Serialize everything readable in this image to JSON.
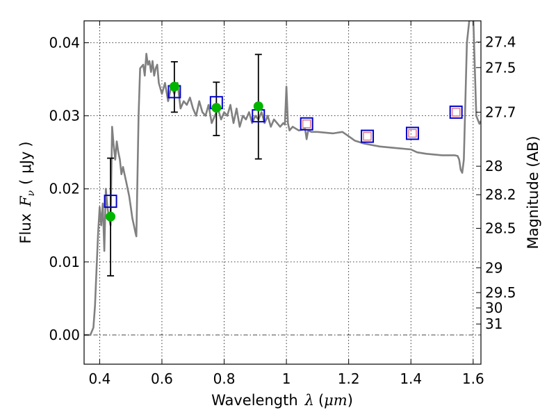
{
  "chart_data": {
    "type": "scatter",
    "xlabel": {
      "text": "Wavelength",
      "symbol": "λ",
      "open": "(",
      "unit": "μm",
      "close": ")"
    },
    "ylabel": {
      "text": "Flux",
      "symbol": "F",
      "sub": "ν",
      "open": "(",
      "unit": "μJy",
      "close": ")"
    },
    "y2label": "Magnitude (AB)",
    "xlim": [
      0.35,
      1.625
    ],
    "ylim": [
      -0.004,
      0.043
    ],
    "x_ticks": [
      0.4,
      0.6,
      0.8,
      1.0,
      1.2,
      1.4,
      1.6
    ],
    "x_tick_labels": [
      "0.4",
      "0.6",
      "0.8",
      "1",
      "1.2",
      "1.4",
      "1.6"
    ],
    "y_ticks": [
      0.0,
      0.01,
      0.02,
      0.03,
      0.04
    ],
    "y_tick_labels": [
      "0.00",
      "0.01",
      "0.02",
      "0.03",
      "0.04"
    ],
    "magnitude_ticks": [
      {
        "label": "27.4",
        "flux": 0.0401
      },
      {
        "label": "27.5",
        "flux": 0.0366
      },
      {
        "label": "27.7",
        "flux": 0.0305
      },
      {
        "label": "28",
        "flux": 0.0231
      },
      {
        "label": "28.2",
        "flux": 0.0192
      },
      {
        "label": "28.5",
        "flux": 0.0146
      },
      {
        "label": "29",
        "flux": 0.0092
      },
      {
        "label": "29.5",
        "flux": 0.0058
      },
      {
        "label": "30",
        "flux": 0.0037
      },
      {
        "label": "31",
        "flux": 0.0015
      }
    ],
    "grid": true,
    "colors": {
      "sed": "#808080",
      "model_box": "#0000cc",
      "observed": "#00b400",
      "ir_box": "#e07a8a",
      "errorbar": "#000000",
      "zero_line": "#333333"
    },
    "series": [
      {
        "role": "sed-template",
        "x": [
          0.35,
          0.36,
          0.37,
          0.38,
          0.385,
          0.39,
          0.395,
          0.4,
          0.405,
          0.41,
          0.415,
          0.42,
          0.425,
          0.43,
          0.435,
          0.44,
          0.445,
          0.45,
          0.455,
          0.46,
          0.465,
          0.47,
          0.475,
          0.48,
          0.485,
          0.49,
          0.495,
          0.5,
          0.505,
          0.51,
          0.515,
          0.518,
          0.52,
          0.525,
          0.53,
          0.54,
          0.545,
          0.55,
          0.555,
          0.56,
          0.565,
          0.57,
          0.575,
          0.58,
          0.585,
          0.59,
          0.6,
          0.61,
          0.62,
          0.63,
          0.64,
          0.65,
          0.66,
          0.67,
          0.68,
          0.69,
          0.7,
          0.71,
          0.72,
          0.73,
          0.74,
          0.75,
          0.76,
          0.77,
          0.78,
          0.79,
          0.8,
          0.81,
          0.82,
          0.83,
          0.84,
          0.85,
          0.86,
          0.87,
          0.88,
          0.89,
          0.9,
          0.91,
          0.92,
          0.93,
          0.94,
          0.95,
          0.96,
          0.97,
          0.98,
          0.99,
          0.995,
          1.0,
          1.005,
          1.01,
          1.02,
          1.04,
          1.06,
          1.065,
          1.07,
          1.08,
          1.1,
          1.15,
          1.18,
          1.2,
          1.22,
          1.25,
          1.3,
          1.35,
          1.4,
          1.42,
          1.45,
          1.5,
          1.54,
          1.55,
          1.555,
          1.56,
          1.565,
          1.57,
          1.575,
          1.58,
          1.59,
          1.6,
          1.61,
          1.62,
          1.625
        ],
        "y": [
          0.0,
          0.0,
          0.0,
          0.001,
          0.004,
          0.009,
          0.014,
          0.0175,
          0.015,
          0.018,
          0.0115,
          0.02,
          0.0175,
          0.016,
          0.015,
          0.0285,
          0.026,
          0.024,
          0.0265,
          0.025,
          0.024,
          0.022,
          0.023,
          0.022,
          0.021,
          0.02,
          0.019,
          0.0175,
          0.016,
          0.015,
          0.014,
          0.0135,
          0.018,
          0.03,
          0.0365,
          0.037,
          0.0355,
          0.0385,
          0.037,
          0.0375,
          0.036,
          0.0375,
          0.0355,
          0.0365,
          0.037,
          0.0345,
          0.033,
          0.0345,
          0.032,
          0.034,
          0.033,
          0.0345,
          0.031,
          0.032,
          0.0315,
          0.0325,
          0.031,
          0.03,
          0.032,
          0.0305,
          0.03,
          0.0315,
          0.029,
          0.03,
          0.031,
          0.0295,
          0.0305,
          0.03,
          0.0315,
          0.029,
          0.031,
          0.0285,
          0.03,
          0.0295,
          0.0305,
          0.029,
          0.03,
          0.0295,
          0.0305,
          0.029,
          0.03,
          0.0285,
          0.0295,
          0.029,
          0.0285,
          0.029,
          0.0288,
          0.034,
          0.029,
          0.028,
          0.0285,
          0.028,
          0.0282,
          0.0268,
          0.028,
          0.0278,
          0.0278,
          0.0276,
          0.0278,
          0.0272,
          0.0266,
          0.0262,
          0.0258,
          0.0256,
          0.0254,
          0.025,
          0.0248,
          0.0246,
          0.0246,
          0.0245,
          0.024,
          0.0226,
          0.0222,
          0.024,
          0.032,
          0.04,
          0.044,
          0.044,
          0.03,
          0.0289,
          0.0293
        ]
      },
      {
        "role": "model-photometry-box",
        "x": [
          0.435,
          0.64,
          0.775,
          0.91
        ],
        "y": [
          0.0183,
          0.0333,
          0.0318,
          0.03
        ]
      },
      {
        "role": "observed-photometry",
        "x": [
          0.435,
          0.64,
          0.775,
          0.91
        ],
        "y": [
          0.0162,
          0.034,
          0.0311,
          0.0313
        ],
        "y_err_low": [
          0.0081,
          0.0035,
          0.0038,
          0.0072
        ],
        "y_err_high": [
          0.008,
          0.0034,
          0.0035,
          0.0071
        ]
      },
      {
        "role": "ir-photometry-box",
        "x": [
          1.065,
          1.26,
          1.405,
          1.545
        ],
        "y": [
          0.0289,
          0.0272,
          0.0276,
          0.0305
        ]
      }
    ]
  }
}
